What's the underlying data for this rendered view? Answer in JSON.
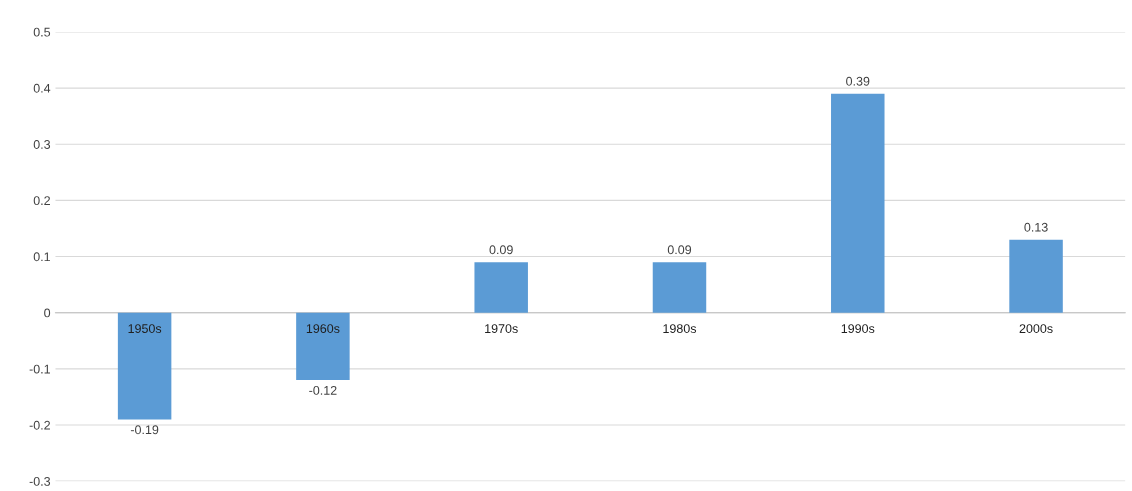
{
  "chart_data": {
    "type": "bar",
    "categories": [
      "1950s",
      "1960s",
      "1970s",
      "1980s",
      "1990s",
      "2000s"
    ],
    "values": [
      -0.19,
      -0.12,
      0.09,
      0.09,
      0.39,
      0.13
    ],
    "color": "#5b9bd5",
    "ylim": [
      -0.3,
      0.5
    ],
    "yticks": [
      -0.3,
      -0.2,
      -0.1,
      0,
      0.1,
      0.2,
      0.3,
      0.4,
      0.5
    ],
    "grid": "y",
    "data_labels": true
  }
}
